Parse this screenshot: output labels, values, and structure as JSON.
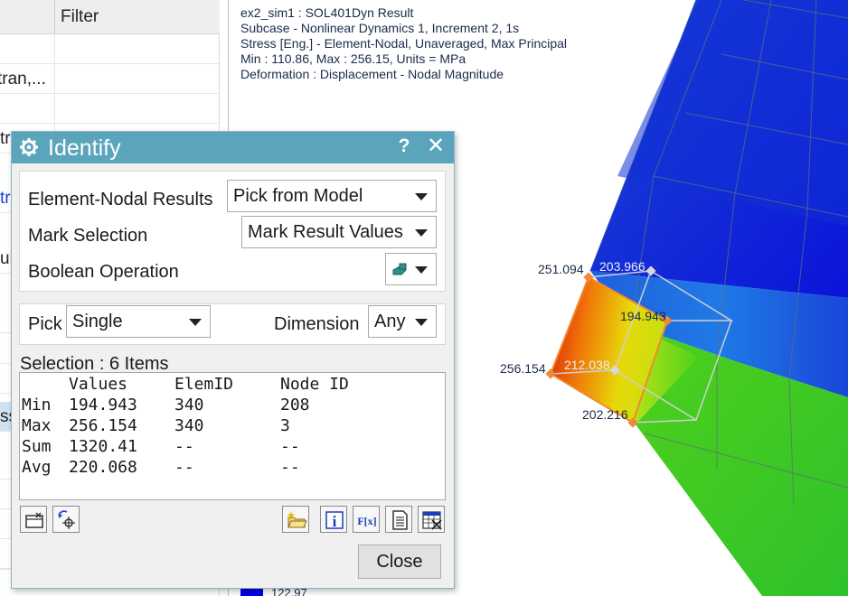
{
  "navigator": {
    "filter_header": "Filter",
    "rows": [
      "",
      "tran,...",
      "",
      "tr",
      "tr",
      "ul",
      "",
      "ss",
      "",
      "",
      "",
      "",
      ""
    ]
  },
  "result_info": {
    "line1": "ex2_sim1 : SOL401Dyn Result",
    "line2": "Subcase - Nonlinear Dynamics 1, Increment 2, 1s",
    "line3": "Stress [Eng.] - Element-Nodal, Unaveraged, Max Principal",
    "line4": "Min : 110.86, Max : 256.15, Units = MPa",
    "line5": "Deformation : Displacement - Nodal Magnitude"
  },
  "model_labels": {
    "v1": "251.094",
    "v2": "203.966",
    "v3": "194.943",
    "v4": "256.154",
    "v5": "212.038",
    "v6": "202.216"
  },
  "legend": {
    "bottom_value": "122.97",
    "bottom_color": "#0000e8"
  },
  "dialog": {
    "title": "Identify",
    "help_symbol": "?",
    "close_symbol": "✕",
    "element_nodal_label": "Element-Nodal Results",
    "element_nodal_value": "Pick from Model",
    "mark_selection_label": "Mark Selection",
    "mark_selection_value": "Mark Result Values",
    "boolean_label": "Boolean Operation",
    "pick_label": "Pick",
    "pick_value": "Single",
    "dimension_label": "Dimension",
    "dimension_value": "Any",
    "selection_label": "Selection : 6 Items",
    "results": {
      "headers": [
        "Values",
        "ElemID",
        "Node ID"
      ],
      "rows": [
        {
          "label": "Min",
          "value": "194.943",
          "elem": "340",
          "node": "208"
        },
        {
          "label": "Max",
          "value": "256.154",
          "elem": "340",
          "node": "3"
        },
        {
          "label": "Sum",
          "value": "1320.41",
          "elem": "--",
          "node": "--"
        },
        {
          "label": "Avg",
          "value": "220.068",
          "elem": "--",
          "node": "--"
        }
      ]
    },
    "toolbar_icons": [
      "display-selected-icon",
      "pick-node-icon",
      "open-folder-icon",
      "information-icon",
      "function-icon",
      "listing-icon",
      "spreadsheet-icon"
    ],
    "close_button": "Close"
  },
  "colors": {
    "title_bar": "#5aa5bc",
    "mesh_blue": "#1a3fd0",
    "mesh_green": "#38c81a",
    "hot_element": "#e83010"
  }
}
